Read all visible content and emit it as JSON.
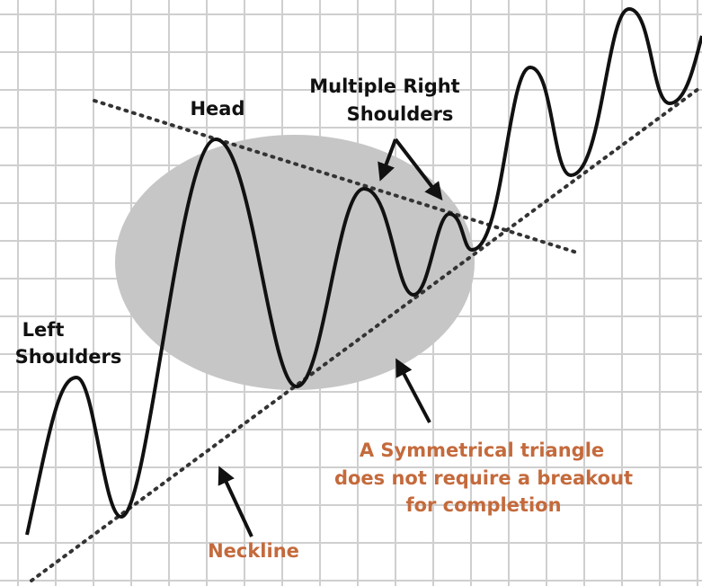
{
  "labels": {
    "head": "Head",
    "right_shoulders": [
      "Multiple Right",
      "Shoulders"
    ],
    "left_shoulders": [
      "Left",
      "Shoulders"
    ],
    "triangle_note": [
      "A Symmetrical triangle",
      "does not require a breakout",
      "for completion"
    ],
    "neckline": "Neckline"
  }
}
